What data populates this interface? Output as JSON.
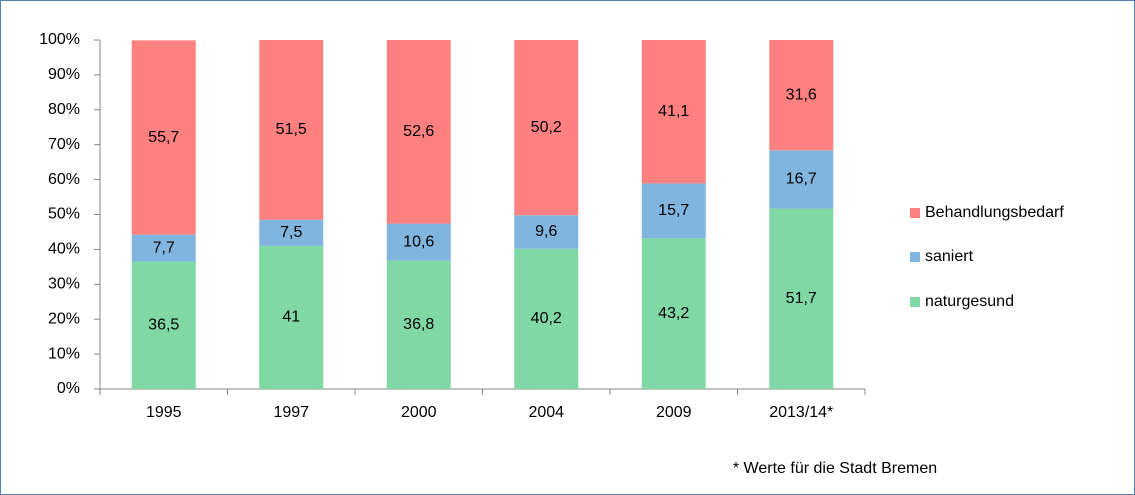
{
  "chart_data": {
    "type": "stacked_bar",
    "categories": [
      "1995",
      "1997",
      "2000",
      "2004",
      "2009",
      "2013/14*"
    ],
    "series": [
      {
        "name": "naturgesund",
        "color": "#80d8a5",
        "values": [
          36.5,
          41,
          36.8,
          40.2,
          43.2,
          51.7
        ],
        "value_labels": [
          "36,5",
          "41",
          "36,8",
          "40,2",
          "43,2",
          "51,7"
        ]
      },
      {
        "name": "saniert",
        "color": "#80b5e0",
        "values": [
          7.7,
          7.5,
          10.6,
          9.6,
          15.7,
          16.7
        ],
        "value_labels": [
          "7,7",
          "7,5",
          "10,6",
          "9,6",
          "15,7",
          "16,7"
        ]
      },
      {
        "name": "Behandlungsbedarf",
        "color": "#ff8080",
        "values": [
          55.7,
          51.5,
          52.6,
          50.2,
          41.1,
          31.6
        ],
        "value_labels": [
          "55,7",
          "51,5",
          "52,6",
          "50,2",
          "41,1",
          "31,6"
        ]
      }
    ],
    "ylim": [
      0,
      100
    ],
    "yticks": [
      {
        "value": 0,
        "label": "0%"
      },
      {
        "value": 10,
        "label": "10%"
      },
      {
        "value": 20,
        "label": "20%"
      },
      {
        "value": 30,
        "label": "30%"
      },
      {
        "value": 40,
        "label": "40%"
      },
      {
        "value": 50,
        "label": "50%"
      },
      {
        "value": 60,
        "label": "60%"
      },
      {
        "value": 70,
        "label": "70%"
      },
      {
        "value": 80,
        "label": "80%"
      },
      {
        "value": 90,
        "label": "90%"
      },
      {
        "value": 100,
        "label": "100%"
      }
    ],
    "note": "* Werte für die Stadt Bremen"
  }
}
